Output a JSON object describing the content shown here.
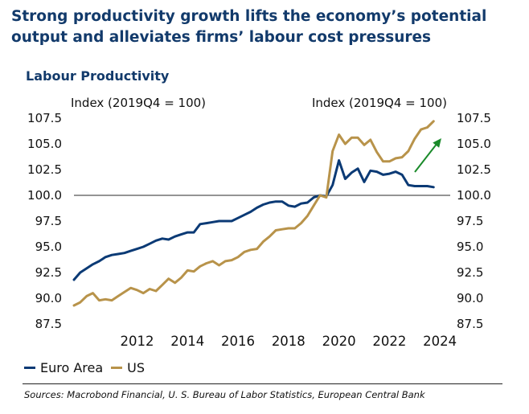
{
  "title": "Strong productivity growth lifts the economy’s potential output and alleviates firms’ labour cost pressures",
  "source": "Sources: Macrobond Financial, U. S. Bureau of Labor Statistics, European Central Bank",
  "colors": {
    "title": "#123a6b",
    "euro_area": "#0b3a75",
    "us": "#b8934a",
    "arrow": "#1a8a2a",
    "baseline": "#555555"
  },
  "chart_data": {
    "type": "line",
    "title": "Labour Productivity",
    "left_axis_label": "Index (2019Q4 = 100)",
    "right_axis_label": "Index (2019Q4 = 100)",
    "ylim": [
      87.5,
      107.5
    ],
    "yticks": [
      "107.5",
      "105.0",
      "102.5",
      "100.0",
      "97.5",
      "95.0",
      "92.5",
      "90.0",
      "87.5"
    ],
    "xlim": [
      2010.0,
      2024.75
    ],
    "xticks": [
      "2012",
      "2014",
      "2016",
      "2018",
      "2020",
      "2022",
      "2024"
    ],
    "reference_line": 100,
    "annotation": "upward-arrow",
    "legend_position": "bottom-left",
    "series": [
      {
        "name": "Euro Area",
        "x": [
          2010.0,
          2010.25,
          2010.5,
          2010.75,
          2011.0,
          2011.25,
          2011.5,
          2011.75,
          2012.0,
          2012.25,
          2012.5,
          2012.75,
          2013.0,
          2013.25,
          2013.5,
          2013.75,
          2014.0,
          2014.25,
          2014.5,
          2014.75,
          2015.0,
          2015.25,
          2015.5,
          2015.75,
          2016.0,
          2016.25,
          2016.5,
          2016.75,
          2017.0,
          2017.25,
          2017.5,
          2017.75,
          2018.0,
          2018.25,
          2018.5,
          2018.75,
          2019.0,
          2019.25,
          2019.5,
          2019.75,
          2020.0,
          2020.25,
          2020.5,
          2020.75,
          2021.0,
          2021.25,
          2021.5,
          2021.75,
          2022.0,
          2022.25,
          2022.5,
          2022.75,
          2023.0,
          2023.25,
          2023.5,
          2023.75,
          2024.0,
          2024.25
        ],
        "values": [
          91.8,
          92.5,
          92.9,
          93.3,
          93.6,
          94.0,
          94.2,
          94.3,
          94.4,
          94.6,
          94.8,
          95.0,
          95.3,
          95.6,
          95.8,
          95.7,
          96.0,
          96.2,
          96.4,
          96.4,
          97.2,
          97.3,
          97.4,
          97.5,
          97.5,
          97.5,
          97.8,
          98.1,
          98.4,
          98.8,
          99.1,
          99.3,
          99.4,
          99.4,
          99.0,
          98.9,
          99.2,
          99.3,
          99.8,
          100.0,
          99.9,
          101.0,
          103.4,
          101.6,
          102.2,
          102.6,
          101.3,
          102.4,
          102.3,
          102.0,
          102.1,
          102.3,
          102.0,
          101.0,
          100.9,
          100.9,
          100.9,
          100.8
        ]
      },
      {
        "name": "US",
        "x": [
          2010.0,
          2010.25,
          2010.5,
          2010.75,
          2011.0,
          2011.25,
          2011.5,
          2011.75,
          2012.0,
          2012.25,
          2012.5,
          2012.75,
          2013.0,
          2013.25,
          2013.5,
          2013.75,
          2014.0,
          2014.25,
          2014.5,
          2014.75,
          2015.0,
          2015.25,
          2015.5,
          2015.75,
          2016.0,
          2016.25,
          2016.5,
          2016.75,
          2017.0,
          2017.25,
          2017.5,
          2017.75,
          2018.0,
          2018.25,
          2018.5,
          2018.75,
          2019.0,
          2019.25,
          2019.5,
          2019.75,
          2020.0,
          2020.25,
          2020.5,
          2020.75,
          2021.0,
          2021.25,
          2021.5,
          2021.75,
          2022.0,
          2022.25,
          2022.5,
          2022.75,
          2023.0,
          2023.25,
          2023.5,
          2023.75,
          2024.0,
          2024.25
        ],
        "values": [
          89.3,
          89.6,
          90.2,
          90.5,
          89.8,
          89.9,
          89.8,
          90.2,
          90.6,
          91.0,
          90.8,
          90.5,
          90.9,
          90.7,
          91.3,
          91.9,
          91.5,
          92.0,
          92.7,
          92.6,
          93.1,
          93.4,
          93.6,
          93.2,
          93.6,
          93.7,
          94.0,
          94.5,
          94.7,
          94.8,
          95.5,
          96.0,
          96.6,
          96.7,
          96.8,
          96.8,
          97.3,
          98.0,
          99.0,
          100.0,
          99.8,
          104.3,
          105.9,
          105.0,
          105.6,
          105.6,
          104.9,
          105.4,
          104.2,
          103.3,
          103.3,
          103.6,
          103.7,
          104.3,
          105.5,
          106.4,
          106.6,
          107.2
        ]
      }
    ]
  }
}
